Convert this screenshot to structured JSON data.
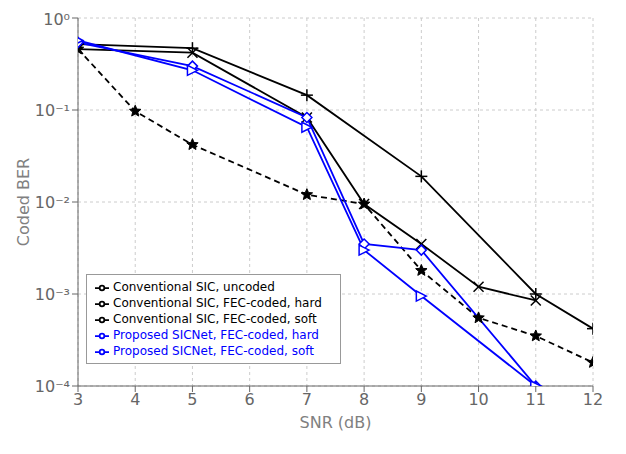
{
  "chart_data": {
    "type": "line",
    "xlabel": "SNR (dB)",
    "ylabel": "Coded BER",
    "log": "y",
    "grid": true,
    "legend": "lower left",
    "xlim": [
      3,
      12
    ],
    "xticks": [
      3,
      4,
      5,
      6,
      7,
      8,
      9,
      10,
      11,
      12
    ],
    "ylim": [
      0.0001,
      1
    ],
    "yticks": [
      {
        "value": 0.0001,
        "label": "10⁻⁴"
      },
      {
        "value": 0.001,
        "label": "10⁻³"
      },
      {
        "value": 0.01,
        "label": "10⁻²"
      },
      {
        "value": 0.1,
        "label": "10⁻¹"
      },
      {
        "value": 1,
        "label": "10⁰"
      }
    ],
    "series": [
      {
        "name": "Conventional SIC,  uncoded",
        "color": "black",
        "line_style": "dashed",
        "marker": "star",
        "x": [
          3,
          4,
          5,
          7,
          8,
          9,
          10,
          11,
          12
        ],
        "values": [
          0.46,
          0.097,
          0.042,
          0.012,
          0.0095,
          0.0018,
          0.00055,
          0.00035,
          0.00018
        ]
      },
      {
        "name": "Conventional SIC, FEC-coded, hard",
        "color": "black",
        "line_style": "solid",
        "marker": "x",
        "x": [
          3,
          5,
          7,
          8,
          9,
          10,
          11
        ],
        "values": [
          0.46,
          0.42,
          0.083,
          0.0095,
          0.0035,
          0.0012,
          0.00085
        ]
      },
      {
        "name": "Conventional SIC, FEC-coded, soft",
        "color": "black",
        "line_style": "solid",
        "marker": "plus",
        "x": [
          3,
          5,
          7,
          9,
          11,
          12
        ],
        "values": [
          0.52,
          0.47,
          0.145,
          0.019,
          0.001,
          0.00042
        ]
      },
      {
        "name": "Proposed SICNet, FEC-coded, hard",
        "color": "blue",
        "line_style": "solid",
        "marker": "diamond",
        "x": [
          3,
          5,
          7,
          8,
          9,
          11
        ],
        "values": [
          0.54,
          0.3,
          0.083,
          0.0035,
          0.003,
          0.0001
        ]
      },
      {
        "name": "Proposed SICNet, FEC-coded, soft",
        "color": "blue",
        "line_style": "solid",
        "marker": "triangle-right",
        "x": [
          3,
          5,
          7,
          8,
          9,
          11
        ],
        "values": [
          0.57,
          0.27,
          0.065,
          0.003,
          0.00095,
          0.0001
        ]
      }
    ]
  }
}
